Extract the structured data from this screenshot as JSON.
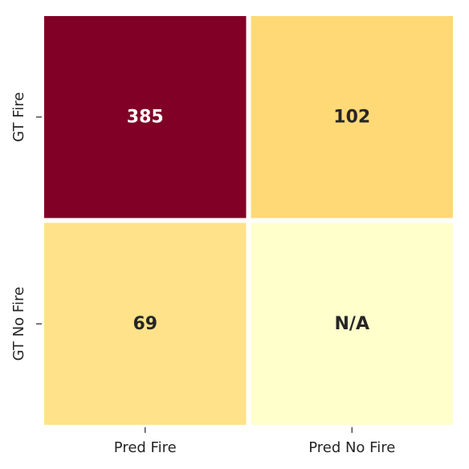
{
  "chart_data": {
    "type": "heatmap",
    "title": "",
    "xlabel": "",
    "ylabel": "",
    "x_categories": [
      "Pred Fire",
      "Pred No Fire"
    ],
    "y_categories": [
      "GT Fire",
      "GT No Fire"
    ],
    "values": [
      [
        385,
        102
      ],
      [
        69,
        null
      ]
    ],
    "cell_labels": [
      [
        "385",
        "102"
      ],
      [
        "69",
        "N/A"
      ]
    ],
    "colorbar": false,
    "colormap": "YlOrRd",
    "cell_colors": [
      [
        "#800026",
        "#fed976"
      ],
      [
        "#ffe28a",
        "#ffffcc"
      ]
    ],
    "label_colors": [
      [
        "#ffffff",
        "#262626"
      ],
      [
        "#262626",
        "#262626"
      ]
    ]
  }
}
